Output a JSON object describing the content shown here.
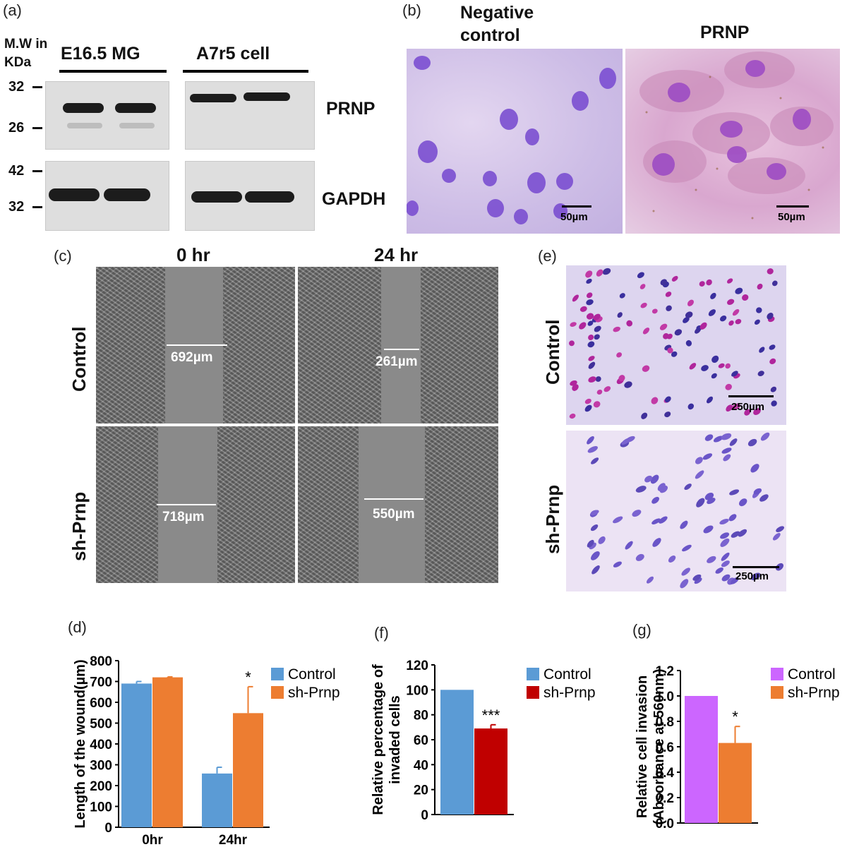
{
  "panels": {
    "a": {
      "label": "(a)",
      "mw_label_line1": "M.W in",
      "mw_label_line2": "KDa",
      "group1": "E16.5 MG",
      "group2": "A7r5 cell",
      "protein1": "PRNP",
      "protein2": "GAPDH",
      "markers_top": [
        "32",
        "26"
      ],
      "markers_bottom": [
        "42",
        "32"
      ]
    },
    "b": {
      "label": "(b)",
      "title_left_line1": "Negative",
      "title_left_line2": "control",
      "title_right": "PRNP",
      "scale_left": "50µm",
      "scale_right": "50µm"
    },
    "c": {
      "label": "(c)",
      "col1": "0 hr",
      "col2": "24 hr",
      "row1": "Control",
      "row2": "sh-Prnp",
      "meas_ctrl_0": "692µm",
      "meas_ctrl_24": "261µm",
      "meas_sh_0": "718µm",
      "meas_sh_24": "550µm"
    },
    "e": {
      "label": "(e)",
      "row1": "Control",
      "row2": "sh-Prnp",
      "scale_top": "250µm",
      "scale_bottom": "250µm"
    },
    "d": {
      "label": "(d)"
    },
    "f": {
      "label": "(f)"
    },
    "g": {
      "label": "(g)"
    }
  },
  "colors": {
    "control_blue": "#5b9bd5",
    "shprnp_orange": "#ed7d31",
    "shprnp_red": "#c00000",
    "control_violet": "#cc66ff",
    "stain_bg": "#cdbde6",
    "nucleus": "#7b4fd1"
  },
  "chart_data": [
    {
      "id": "d",
      "type": "bar",
      "categories": [
        "0hr",
        "24hr"
      ],
      "series": [
        {
          "name": "Control",
          "values": [
            690,
            258
          ],
          "errors": [
            10,
            30
          ]
        },
        {
          "name": "sh-Prnp",
          "values": [
            720,
            548
          ],
          "errors": [
            2,
            127
          ]
        }
      ],
      "ylabel": "Length of the wound(µm)",
      "ylim": [
        0,
        800
      ],
      "yticks": [
        0,
        100,
        200,
        300,
        400,
        500,
        600,
        700,
        800
      ],
      "significance": [
        {
          "category": "24hr",
          "series": "sh-Prnp",
          "label": "*"
        }
      ],
      "legend": "top-right"
    },
    {
      "id": "f",
      "type": "bar",
      "categories": [
        ""
      ],
      "series": [
        {
          "name": "Control",
          "values": [
            100
          ],
          "errors": [
            0
          ]
        },
        {
          "name": "sh-Prnp",
          "values": [
            69
          ],
          "errors": [
            3
          ]
        }
      ],
      "ylabel_line1": "Relative percentage of",
      "ylabel_line2": "invaded cells",
      "ylim": [
        0,
        120
      ],
      "yticks": [
        0,
        20,
        40,
        60,
        80,
        100,
        120
      ],
      "significance": [
        {
          "series": "sh-Prnp",
          "label": "***"
        }
      ],
      "legend": "top-right"
    },
    {
      "id": "g",
      "type": "bar",
      "categories": [
        ""
      ],
      "series": [
        {
          "name": "Control",
          "values": [
            1.0
          ],
          "errors": [
            0
          ]
        },
        {
          "name": "sh-Prnp",
          "values": [
            0.63
          ],
          "errors": [
            0.13
          ]
        }
      ],
      "ylabel_line1": "Relative cell invasion",
      "ylabel_line2": "(Absorbance at 560nm)",
      "ylim": [
        0,
        1.2
      ],
      "yticks": [
        "0.0",
        "0.2",
        "0.4",
        "0.6",
        "0.8",
        "1.0",
        "1.2"
      ],
      "significance": [
        {
          "series": "sh-Prnp",
          "label": "*"
        }
      ],
      "legend": "top-right"
    }
  ]
}
